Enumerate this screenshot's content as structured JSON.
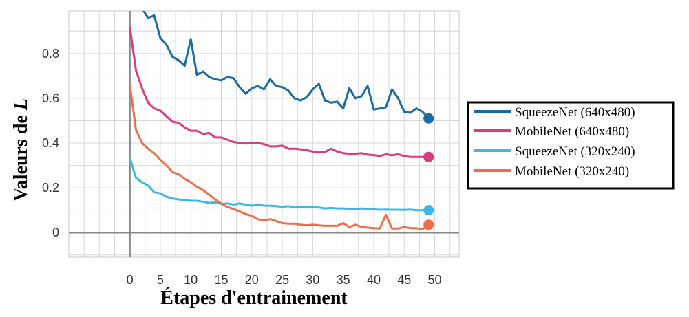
{
  "chart_data": {
    "type": "line",
    "xlabel": "Étapes d'entrainement",
    "ylabel_prefix": "Valeurs de ",
    "ylabel_symbol": "L",
    "xlim": [
      -10,
      54
    ],
    "ylim": [
      -0.11,
      0.99
    ],
    "xticks": [
      0,
      5,
      10,
      15,
      20,
      25,
      30,
      35,
      40,
      45,
      50
    ],
    "yticks": [
      0,
      0.2,
      0.4,
      0.6,
      0.8
    ],
    "ytick_labels": [
      "0",
      "0.2",
      "0.4",
      "0.6",
      "0.8"
    ],
    "grid": true,
    "legend_position": "right",
    "series": [
      {
        "name": "SqueezeNet (640x480)",
        "color": "#1a6aa6",
        "values": [
          1.08,
          1.04,
          1.0,
          0.96,
          0.97,
          0.87,
          0.84,
          0.785,
          0.77,
          0.745,
          0.865,
          0.705,
          0.72,
          0.695,
          0.685,
          0.68,
          0.695,
          0.69,
          0.65,
          0.62,
          0.645,
          0.655,
          0.64,
          0.685,
          0.655,
          0.65,
          0.635,
          0.6,
          0.59,
          0.605,
          0.64,
          0.665,
          0.59,
          0.58,
          0.585,
          0.555,
          0.645,
          0.6,
          0.61,
          0.655,
          0.55,
          0.555,
          0.56,
          0.64,
          0.6,
          0.54,
          0.535,
          0.555,
          0.54,
          0.51
        ]
      },
      {
        "name": "MobileNet (640x480)",
        "color": "#d93b7d",
        "values": [
          0.92,
          0.725,
          0.645,
          0.58,
          0.555,
          0.545,
          0.52,
          0.495,
          0.49,
          0.47,
          0.455,
          0.455,
          0.44,
          0.445,
          0.425,
          0.425,
          0.415,
          0.405,
          0.4,
          0.398,
          0.4,
          0.4,
          0.395,
          0.385,
          0.385,
          0.388,
          0.375,
          0.375,
          0.372,
          0.368,
          0.362,
          0.358,
          0.36,
          0.375,
          0.362,
          0.355,
          0.352,
          0.352,
          0.355,
          0.348,
          0.346,
          0.342,
          0.35,
          0.345,
          0.35,
          0.342,
          0.338,
          0.338,
          0.338,
          0.338
        ]
      },
      {
        "name": "SqueezeNet (320x240)",
        "color": "#3db8e0",
        "values": [
          0.335,
          0.245,
          0.225,
          0.21,
          0.18,
          0.175,
          0.16,
          0.152,
          0.148,
          0.145,
          0.142,
          0.142,
          0.138,
          0.132,
          0.135,
          0.128,
          0.13,
          0.125,
          0.13,
          0.125,
          0.12,
          0.125,
          0.12,
          0.12,
          0.118,
          0.115,
          0.118,
          0.112,
          0.114,
          0.112,
          0.113,
          0.112,
          0.108,
          0.11,
          0.108,
          0.108,
          0.106,
          0.104,
          0.108,
          0.106,
          0.104,
          0.102,
          0.103,
          0.102,
          0.102,
          0.101,
          0.103,
          0.1,
          0.1,
          0.1
        ]
      },
      {
        "name": "MobileNet (320x240)",
        "color": "#ee6e4c",
        "values": [
          0.66,
          0.46,
          0.4,
          0.375,
          0.355,
          0.325,
          0.3,
          0.27,
          0.26,
          0.24,
          0.225,
          0.205,
          0.19,
          0.17,
          0.148,
          0.13,
          0.115,
          0.105,
          0.095,
          0.082,
          0.075,
          0.06,
          0.055,
          0.06,
          0.052,
          0.042,
          0.04,
          0.04,
          0.035,
          0.032,
          0.035,
          0.032,
          0.03,
          0.03,
          0.03,
          0.042,
          0.025,
          0.035,
          0.025,
          0.022,
          0.02,
          0.018,
          0.08,
          0.018,
          0.018,
          0.025,
          0.02,
          0.02,
          0.015,
          0.035
        ]
      }
    ]
  }
}
